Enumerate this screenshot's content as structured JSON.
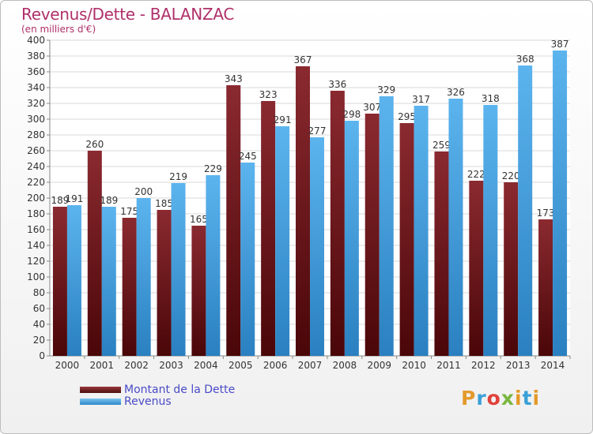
{
  "title": "Revenus/Dette - BALANZAC",
  "subtitle": "(en milliers d'€)",
  "logo_text": "Proxiti",
  "legend": {
    "dette_label": "Montant de la Dette",
    "revenus_label": "Revenus"
  },
  "colors": {
    "dette": "#7a1f24",
    "revenus": "#46a3e3",
    "title": "#b0306a",
    "legend_text": "#4a4ac8"
  },
  "chart_data": {
    "type": "bar",
    "categories": [
      "2000",
      "2001",
      "2002",
      "2003",
      "2004",
      "2005",
      "2006",
      "2007",
      "2008",
      "2009",
      "2010",
      "2011",
      "2012",
      "2013",
      "2014"
    ],
    "series": [
      {
        "name": "Montant de la Dette",
        "values": [
          189,
          260,
          175,
          185,
          165,
          343,
          323,
          367,
          336,
          307,
          295,
          259,
          222,
          220,
          173
        ]
      },
      {
        "name": "Revenus",
        "values": [
          191,
          189,
          200,
          219,
          229,
          245,
          291,
          277,
          298,
          329,
          317,
          326,
          318,
          368,
          387
        ]
      }
    ],
    "ylim": [
      0,
      400
    ],
    "ytick_step": 20,
    "grid": true,
    "legend_position": "bottom-left"
  }
}
